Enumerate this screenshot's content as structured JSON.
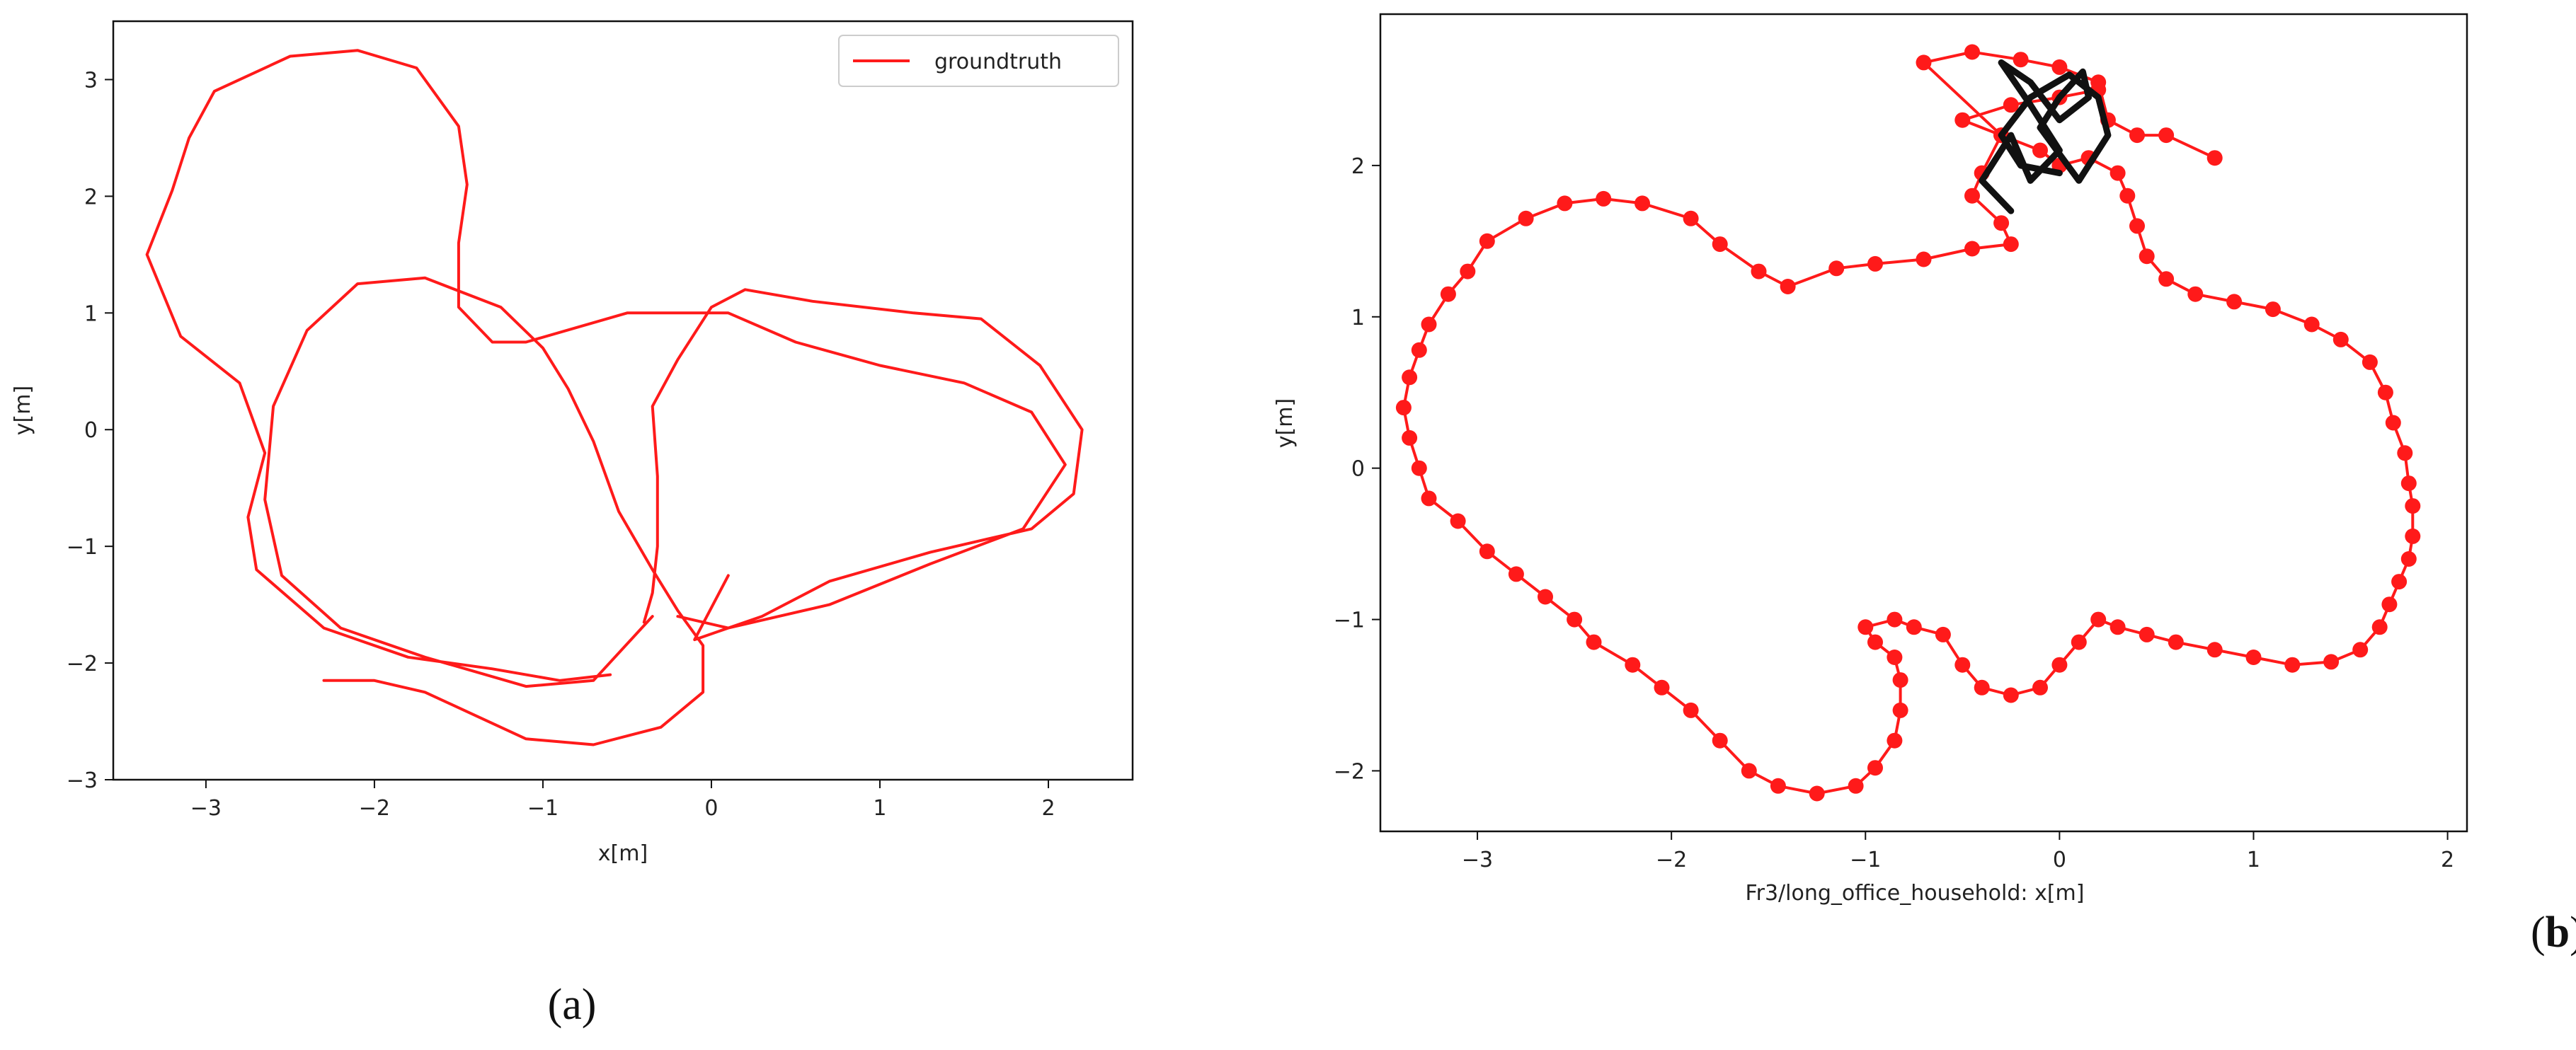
{
  "figure": {
    "panel_a_label": "(a)",
    "panel_b_label_open": "(",
    "panel_b_label_letter": "b",
    "panel_b_label_close": ")"
  },
  "chart_data": [
    {
      "type": "line",
      "xlabel": "x[m]",
      "ylabel": "y[m]",
      "xlim": [
        -3.55,
        2.5
      ],
      "ylim": [
        -3.0,
        3.5
      ],
      "xticks": [
        -3,
        -2,
        -1,
        0,
        1,
        2
      ],
      "yticks": [
        -3,
        -2,
        -1,
        0,
        1,
        2,
        3
      ],
      "xtick_labels": [
        "−3",
        "−2",
        "−1",
        "0",
        "1",
        "2"
      ],
      "ytick_labels": [
        "−3",
        "−2",
        "−1",
        "0",
        "1",
        "2",
        "3"
      ],
      "legend": {
        "position": "upper-right",
        "entries": [
          "groundtruth"
        ]
      },
      "grid": false,
      "series": [
        {
          "name": "groundtruth",
          "color": "#ff1a1a",
          "points": [
            [
              -2.3,
              -2.15
            ],
            [
              -2.0,
              -2.15
            ],
            [
              -1.7,
              -2.25
            ],
            [
              -1.4,
              -2.45
            ],
            [
              -1.1,
              -2.65
            ],
            [
              -0.7,
              -2.7
            ],
            [
              -0.3,
              -2.55
            ],
            [
              -0.05,
              -2.25
            ],
            [
              -0.05,
              -1.85
            ],
            [
              -0.2,
              -1.55
            ],
            [
              -0.35,
              -1.2
            ],
            [
              -0.55,
              -0.7
            ],
            [
              -0.7,
              -0.1
            ],
            [
              -0.85,
              0.35
            ],
            [
              -1.0,
              0.7
            ],
            [
              -1.25,
              1.05
            ],
            [
              -1.7,
              1.3
            ],
            [
              -2.1,
              1.25
            ],
            [
              -2.4,
              0.85
            ],
            [
              -2.6,
              0.2
            ],
            [
              -2.65,
              -0.6
            ],
            [
              -2.55,
              -1.25
            ],
            [
              -2.2,
              -1.7
            ],
            [
              -1.7,
              -1.95
            ],
            [
              -1.1,
              -2.2
            ],
            [
              -0.7,
              -2.15
            ],
            [
              -0.35,
              -1.6
            ],
            [
              null,
              null
            ],
            [
              -0.4,
              -1.65
            ],
            [
              -0.35,
              -1.4
            ],
            [
              -0.32,
              -1.0
            ],
            [
              -0.32,
              -0.4
            ],
            [
              -0.35,
              0.2
            ],
            [
              -0.2,
              0.6
            ],
            [
              0.0,
              1.05
            ],
            [
              0.2,
              1.2
            ],
            [
              0.6,
              1.1
            ],
            [
              1.2,
              1.0
            ],
            [
              1.6,
              0.95
            ],
            [
              1.95,
              0.55
            ],
            [
              2.2,
              0.0
            ],
            [
              2.15,
              -0.55
            ],
            [
              1.9,
              -0.85
            ],
            [
              1.3,
              -1.05
            ],
            [
              0.7,
              -1.3
            ],
            [
              0.3,
              -1.6
            ],
            [
              -0.1,
              -1.8
            ],
            [
              0.1,
              -1.25
            ],
            [
              null,
              null
            ],
            [
              -0.2,
              -1.6
            ],
            [
              0.1,
              -1.7
            ],
            [
              0.7,
              -1.5
            ],
            [
              1.3,
              -1.15
            ],
            [
              1.85,
              -0.85
            ],
            [
              2.1,
              -0.3
            ],
            [
              1.9,
              0.15
            ],
            [
              1.5,
              0.4
            ],
            [
              1.0,
              0.55
            ],
            [
              0.5,
              0.75
            ],
            [
              0.1,
              1.0
            ],
            [
              -0.5,
              1.0
            ],
            [
              -1.1,
              0.75
            ],
            [
              -1.3,
              0.75
            ],
            [
              -1.5,
              1.05
            ],
            [
              -1.5,
              1.6
            ],
            [
              -1.45,
              2.1
            ],
            [
              -1.5,
              2.6
            ],
            [
              -1.75,
              3.1
            ],
            [
              -2.1,
              3.25
            ],
            [
              -2.5,
              3.2
            ],
            [
              -2.95,
              2.9
            ],
            [
              -3.1,
              2.5
            ],
            [
              -3.2,
              2.05
            ],
            [
              -3.35,
              1.5
            ],
            [
              -3.15,
              0.8
            ],
            [
              -2.8,
              0.4
            ],
            [
              -2.65,
              -0.2
            ],
            [
              -2.75,
              -0.75
            ],
            [
              -2.7,
              -1.2
            ],
            [
              -2.3,
              -1.7
            ],
            [
              -1.8,
              -1.95
            ],
            [
              -1.3,
              -2.05
            ],
            [
              -0.9,
              -2.15
            ],
            [
              -0.6,
              -2.1
            ]
          ]
        }
      ]
    },
    {
      "type": "line",
      "xlabel": "Fr3/long_office_household:   x[m]",
      "ylabel": "y[m]",
      "xlim": [
        -3.5,
        2.1
      ],
      "ylim": [
        -2.4,
        3.0
      ],
      "xticks": [
        -3,
        -2,
        -1,
        0,
        1,
        2
      ],
      "yticks": [
        -2,
        -1,
        0,
        1,
        2
      ],
      "xtick_labels": [
        "−3",
        "−2",
        "−1",
        "0",
        "1",
        "2"
      ],
      "ytick_labels": [
        "−2",
        "−1",
        "0",
        "1",
        "2"
      ],
      "grid": false,
      "series": [
        {
          "color": "#ff1a1a",
          "marker": "circle",
          "points": [
            [
              0.8,
              2.05
            ],
            [
              0.55,
              2.2
            ],
            [
              0.4,
              2.2
            ],
            [
              0.25,
              2.3
            ],
            [
              0.2,
              2.55
            ],
            [
              0.0,
              2.65
            ],
            [
              -0.2,
              2.7
            ],
            [
              -0.45,
              2.75
            ],
            [
              -0.7,
              2.68
            ],
            [
              -0.3,
              2.2
            ],
            [
              -0.4,
              1.95
            ],
            [
              -0.45,
              1.8
            ],
            [
              -0.3,
              1.62
            ],
            [
              -0.25,
              1.48
            ],
            [
              -0.45,
              1.45
            ],
            [
              -0.7,
              1.38
            ],
            [
              -0.95,
              1.35
            ],
            [
              -1.15,
              1.32
            ],
            [
              -1.4,
              1.2
            ],
            [
              -1.55,
              1.3
            ],
            [
              -1.75,
              1.48
            ],
            [
              -1.9,
              1.65
            ],
            [
              -2.15,
              1.75
            ],
            [
              -2.35,
              1.78
            ],
            [
              -2.55,
              1.75
            ],
            [
              -2.75,
              1.65
            ],
            [
              -2.95,
              1.5
            ],
            [
              -3.05,
              1.3
            ],
            [
              -3.15,
              1.15
            ],
            [
              -3.25,
              0.95
            ],
            [
              -3.3,
              0.78
            ],
            [
              -3.35,
              0.6
            ],
            [
              -3.38,
              0.4
            ],
            [
              -3.35,
              0.2
            ],
            [
              -3.3,
              0.0
            ],
            [
              -3.25,
              -0.2
            ],
            [
              -3.1,
              -0.35
            ],
            [
              -2.95,
              -0.55
            ],
            [
              -2.8,
              -0.7
            ],
            [
              -2.65,
              -0.85
            ],
            [
              -2.5,
              -1.0
            ],
            [
              -2.4,
              -1.15
            ],
            [
              -2.2,
              -1.3
            ],
            [
              -2.05,
              -1.45
            ],
            [
              -1.9,
              -1.6
            ],
            [
              -1.75,
              -1.8
            ],
            [
              -1.6,
              -2.0
            ],
            [
              -1.45,
              -2.1
            ],
            [
              -1.25,
              -2.15
            ],
            [
              -1.05,
              -2.1
            ],
            [
              -0.95,
              -1.98
            ],
            [
              -0.85,
              -1.8
            ],
            [
              -0.82,
              -1.6
            ],
            [
              -0.82,
              -1.4
            ],
            [
              -0.85,
              -1.25
            ],
            [
              -0.95,
              -1.15
            ],
            [
              -1.0,
              -1.05
            ],
            [
              -0.85,
              -1.0
            ],
            [
              -0.75,
              -1.05
            ],
            [
              -0.6,
              -1.1
            ],
            [
              -0.5,
              -1.3
            ],
            [
              -0.4,
              -1.45
            ],
            [
              -0.25,
              -1.5
            ],
            [
              -0.1,
              -1.45
            ],
            [
              0.0,
              -1.3
            ],
            [
              0.1,
              -1.15
            ],
            [
              0.2,
              -1.0
            ],
            [
              0.3,
              -1.05
            ],
            [
              0.45,
              -1.1
            ],
            [
              0.6,
              -1.15
            ],
            [
              0.8,
              -1.2
            ],
            [
              1.0,
              -1.25
            ],
            [
              1.2,
              -1.3
            ],
            [
              1.4,
              -1.28
            ],
            [
              1.55,
              -1.2
            ],
            [
              1.65,
              -1.05
            ],
            [
              1.7,
              -0.9
            ],
            [
              1.75,
              -0.75
            ],
            [
              1.8,
              -0.6
            ],
            [
              1.82,
              -0.45
            ],
            [
              1.82,
              -0.25
            ],
            [
              1.8,
              -0.1
            ],
            [
              1.78,
              0.1
            ],
            [
              1.72,
              0.3
            ],
            [
              1.68,
              0.5
            ],
            [
              1.6,
              0.7
            ],
            [
              1.45,
              0.85
            ],
            [
              1.3,
              0.95
            ],
            [
              1.1,
              1.05
            ],
            [
              0.9,
              1.1
            ],
            [
              0.7,
              1.15
            ],
            [
              0.55,
              1.25
            ],
            [
              0.45,
              1.4
            ],
            [
              0.4,
              1.6
            ],
            [
              0.35,
              1.8
            ],
            [
              0.3,
              1.95
            ],
            [
              0.15,
              2.05
            ],
            [
              0.0,
              2.0
            ],
            [
              -0.1,
              2.1
            ],
            [
              -0.3,
              2.2
            ],
            [
              -0.5,
              2.3
            ],
            [
              -0.25,
              2.4
            ],
            [
              0.0,
              2.45
            ],
            [
              0.2,
              2.5
            ]
          ]
        },
        {
          "color": "#111111",
          "points": [
            [
              -0.25,
              1.7
            ],
            [
              -0.4,
              1.9
            ],
            [
              -0.25,
              2.2
            ],
            [
              -0.15,
              1.9
            ],
            [
              0.0,
              2.1
            ],
            [
              -0.15,
              2.4
            ],
            [
              -0.3,
              2.68
            ],
            [
              -0.15,
              2.55
            ],
            [
              0.0,
              2.3
            ],
            [
              0.15,
              2.45
            ],
            [
              0.12,
              2.62
            ],
            [
              0.0,
              2.45
            ],
            [
              -0.1,
              2.25
            ],
            [
              0.1,
              1.9
            ],
            [
              0.25,
              2.2
            ],
            [
              0.2,
              2.45
            ],
            [
              0.05,
              2.6
            ],
            [
              -0.15,
              2.45
            ],
            [
              -0.3,
              2.2
            ],
            [
              -0.2,
              2.0
            ],
            [
              0.0,
              1.95
            ]
          ]
        }
      ]
    }
  ]
}
